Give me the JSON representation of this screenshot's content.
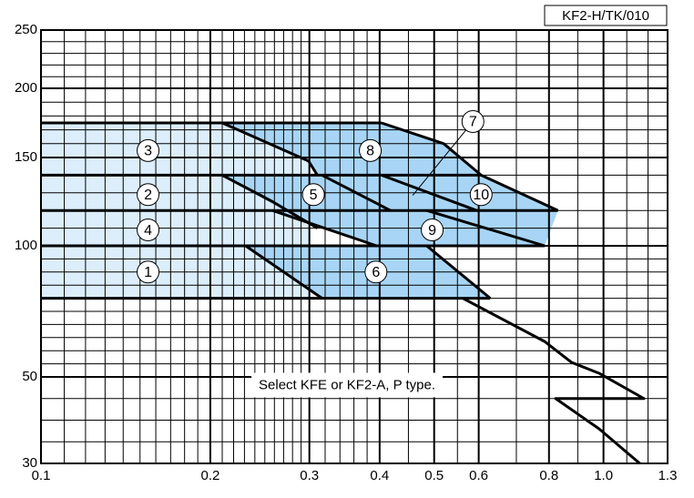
{
  "chart_data": {
    "type": "line",
    "code": "KF2-H/TK/010",
    "xscale": "log",
    "grid": true,
    "xlim": [
      0.1,
      1.3
    ],
    "ylim": [
      30,
      250
    ],
    "xticks": [
      0.1,
      0.2,
      0.3,
      0.4,
      0.5,
      0.6,
      0.8,
      {
        "value": 1,
        "label": "1.0"
      },
      1.3
    ],
    "yticks": [
      30,
      50,
      100,
      150,
      200,
      250
    ],
    "xminor": [
      0.11,
      0.12,
      0.13,
      0.14,
      0.15,
      0.16,
      0.17,
      0.18,
      0.19,
      0.21,
      0.22,
      0.23,
      0.24,
      0.25,
      0.26,
      0.27,
      0.28,
      0.29,
      0.32,
      0.34,
      0.36,
      0.38,
      0.45,
      0.55,
      0.7,
      0.9,
      1.1,
      1.2
    ],
    "yminor": [
      35,
      40,
      45,
      55,
      60,
      65,
      70,
      75,
      80,
      85,
      90,
      95,
      110,
      120,
      130,
      140,
      160,
      170,
      180,
      190,
      210,
      220,
      230,
      240
    ],
    "light_color": "#dceefb",
    "fill_color": "#a8d5f5",
    "line_color": "#000000",
    "light_region": {
      "x": [
        0.1,
        0.3,
        0.3,
        0.1
      ],
      "y": [
        80,
        80,
        175,
        175
      ]
    },
    "regions": [
      {
        "x": [
          0.21,
          0.299,
          0.31,
          0.606,
          0.52,
          0.403
        ],
        "y": [
          175,
          148,
          140,
          140,
          160,
          175
        ]
      },
      {
        "x": [
          0.21,
          0.27,
          0.83,
          0.606
        ],
        "y": [
          140,
          120,
          120,
          140
        ]
      },
      {
        "x": [
          0.258,
          0.395,
          0.786,
          0.83
        ],
        "y": [
          120,
          100,
          100,
          120
        ]
      },
      {
        "x": [
          0.231,
          0.316,
          0.629,
          0.485
        ],
        "y": [
          100,
          80,
          80,
          100
        ]
      }
    ],
    "curves": [
      {
        "x": [
          0.1,
          0.403
        ],
        "y": [
          175,
          175
        ]
      },
      {
        "x": [
          0.1,
          0.606
        ],
        "y": [
          140,
          140
        ]
      },
      {
        "x": [
          0.1,
          0.83
        ],
        "y": [
          120,
          120
        ]
      },
      {
        "x": [
          0.1,
          0.786
        ],
        "y": [
          100,
          100
        ]
      },
      {
        "x": [
          0.1,
          0.629
        ],
        "y": [
          80,
          80
        ]
      },
      {
        "x": [
          0.21,
          0.299,
          0.31
        ],
        "y": [
          175,
          148,
          140
        ]
      },
      {
        "x": [
          0.403,
          0.52,
          0.606,
          0.83
        ],
        "y": [
          175,
          160,
          140,
          120
        ]
      },
      {
        "x": [
          0.316,
          0.418
        ],
        "y": [
          140,
          120
        ]
      },
      {
        "x": [
          0.21,
          0.258,
          0.31
        ],
        "y": [
          140,
          125,
          110
        ]
      },
      {
        "x": [
          0.258,
          0.395
        ],
        "y": [
          120,
          100
        ]
      },
      {
        "x": [
          0.403,
          0.595
        ],
        "y": [
          140,
          120
        ]
      },
      {
        "x": [
          0.485,
          0.786
        ],
        "y": [
          120,
          100
        ]
      },
      {
        "x": [
          0.231,
          0.316
        ],
        "y": [
          100,
          80
        ]
      },
      {
        "x": [
          0.485,
          0.629
        ],
        "y": [
          100,
          80
        ]
      },
      {
        "x": [
          0.562,
          0.786,
          0.878,
          0.982,
          1.18,
          0.822,
          0.982,
          1.16
        ],
        "y": [
          80,
          63.5,
          55.5,
          51.4,
          45,
          45,
          38,
          30
        ]
      }
    ],
    "labels": [
      {
        "text": "3",
        "x": 0.155,
        "y": 155
      },
      {
        "text": "8",
        "x": 0.385,
        "y": 155
      },
      {
        "text": "7",
        "x": 0.586,
        "y": 176,
        "to": {
          "x": 0.458,
          "y": 128.6
        }
      },
      {
        "text": "2",
        "x": 0.155,
        "y": 129
      },
      {
        "text": "5",
        "x": 0.305,
        "y": 129
      },
      {
        "text": "10",
        "x": 0.606,
        "y": 129
      },
      {
        "text": "4",
        "x": 0.155,
        "y": 109
      },
      {
        "text": "9",
        "x": 0.496,
        "y": 109
      },
      {
        "text": "1",
        "x": 0.155,
        "y": 90
      },
      {
        "text": "6",
        "x": 0.394,
        "y": 90
      }
    ],
    "note": {
      "text": "Select KFE or KF2-A, P type.",
      "x": 0.35,
      "y": 48
    }
  }
}
